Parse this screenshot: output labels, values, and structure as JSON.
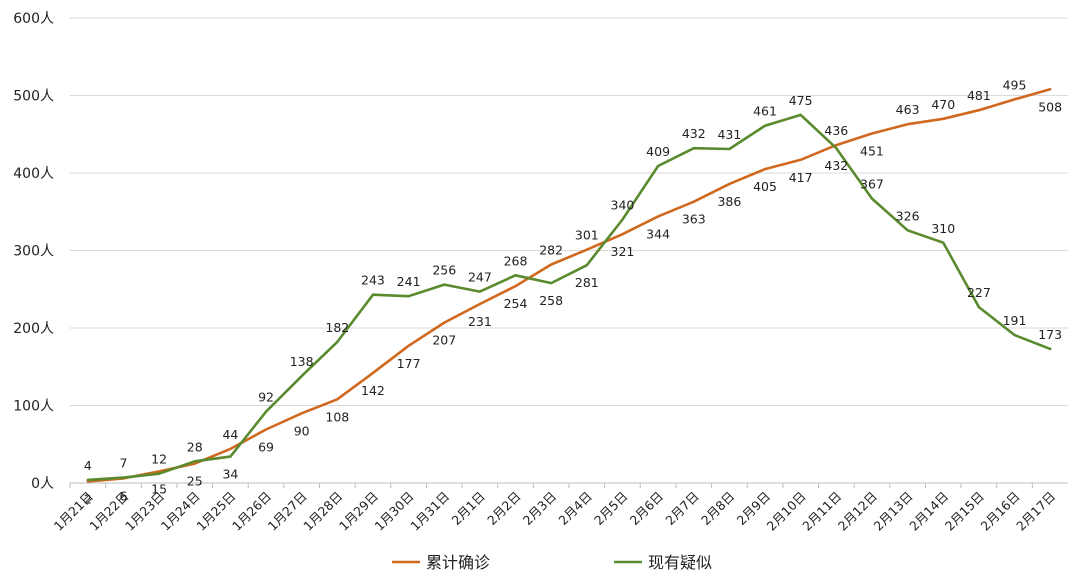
{
  "chart_data": {
    "type": "line",
    "title": "",
    "xlabel": "",
    "ylabel": "",
    "y_unit": "人",
    "ylim": [
      0,
      600
    ],
    "yticks": [
      0,
      100,
      200,
      300,
      400,
      500,
      600
    ],
    "yticklabels": [
      "0人",
      "100人",
      "200人",
      "300人",
      "400人",
      "500人",
      "600人"
    ],
    "grid": "horizontal",
    "legend": "bottom",
    "categories": [
      "1月21日",
      "1月22日",
      "1月23日",
      "1月24日",
      "1月25日",
      "1月26日",
      "1月27日",
      "1月28日",
      "1月29日",
      "1月30日",
      "1月31日",
      "2月1日",
      "2月2日",
      "2月3日",
      "2月4日",
      "2月5日",
      "2月6日",
      "2月7日",
      "2月8日",
      "2月9日",
      "2月10日",
      "2月11日",
      "2月12日",
      "2月13日",
      "2月14日",
      "2月15日",
      "2月16日",
      "2月17日"
    ],
    "series": [
      {
        "name": "累计确诊",
        "color": "#d0691f",
        "values": [
          2,
          6,
          15,
          25,
          44,
          69,
          90,
          108,
          142,
          177,
          207,
          231,
          254,
          282,
          301,
          321,
          344,
          363,
          386,
          405,
          417,
          436,
          451,
          463,
          470,
          481,
          495,
          508
        ],
        "label_positions": [
          "below",
          "below",
          "below",
          "below",
          "above",
          "below",
          "below",
          "below",
          "below",
          "below",
          "below",
          "below",
          "below",
          "above",
          "above",
          "below",
          "below",
          "below",
          "below",
          "below",
          "below",
          "above",
          "below",
          "above",
          "above",
          "above",
          "above",
          "below"
        ]
      },
      {
        "name": "现有疑似",
        "color": "#5a8a2e",
        "values": [
          4,
          7,
          12,
          28,
          34,
          92,
          138,
          182,
          243,
          241,
          256,
          247,
          268,
          258,
          281,
          340,
          409,
          432,
          431,
          461,
          475,
          432,
          367,
          326,
          310,
          227,
          191,
          173
        ],
        "label_positions": [
          "above",
          "above",
          "above",
          "above",
          "below",
          "above",
          "above",
          "above",
          "above",
          "above",
          "above",
          "above",
          "above",
          "below",
          "below",
          "above",
          "above",
          "above",
          "above",
          "above",
          "above",
          "below",
          "above",
          "above",
          "above",
          "above",
          "above",
          "above"
        ]
      }
    ]
  }
}
